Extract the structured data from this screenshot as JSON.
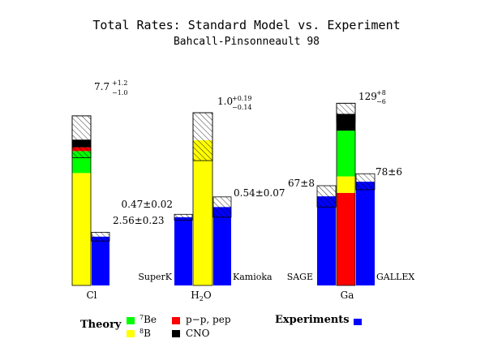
{
  "chart_data": {
    "type": "bar",
    "title": "Total Rates: Standard Model vs. Experiment",
    "subtitle": "Bahcall-Pinsonneault 98",
    "colors": {
      "7Be": "#00ff00",
      "8B": "#ffff00",
      "pp_pep": "#ff0000",
      "CNO": "#000000",
      "experiment": "#0000ff"
    },
    "groups": [
      {
        "name": "Cl",
        "theory": {
          "value": 7.7,
          "err_plus": 1.2,
          "err_minus": 1.0,
          "components": {
            "8B": 5.9,
            "7Be": 1.15,
            "pp_pep": 0.2,
            "CNO": 0.4
          },
          "label_value": "7.7",
          "label_plus": "+1.2",
          "label_minus": "−1.0"
        },
        "experiments": [
          {
            "name": "",
            "value": 2.56,
            "error": 0.23,
            "label": "2.56±0.23"
          }
        ]
      },
      {
        "name": "H2O",
        "label_main": "H",
        "label_sub": "2",
        "label_tail": "O",
        "theory": {
          "value": 1.0,
          "err_plus": 0.19,
          "err_minus": 0.14,
          "components": {
            "8B": 1.0
          },
          "label_value": "1.0",
          "label_plus": "+0.19",
          "label_minus": "−0.14"
        },
        "experiments": [
          {
            "name": "SuperK",
            "value": 0.47,
            "error": 0.02,
            "label": "0.47±0.02"
          },
          {
            "name": "Kamioka",
            "value": 0.54,
            "error": 0.07,
            "label": "0.54±0.07"
          }
        ]
      },
      {
        "name": "Ga",
        "theory": {
          "value": 129,
          "err_plus": 8,
          "err_minus": 6,
          "components": {
            "pp_pep": 69.6,
            "8B": 12.4,
            "7Be": 34.4,
            "CNO": 12.6
          },
          "label_value": "129",
          "label_plus": "+8",
          "label_minus": "−6"
        },
        "experiments": [
          {
            "name": "SAGE",
            "value": 67,
            "error": 8,
            "label": "67±8"
          },
          {
            "name": "GALLEX",
            "value": 78,
            "error": 6,
            "label": "78±6"
          }
        ]
      }
    ],
    "legend": {
      "theory_title": "Theory",
      "experiments_title": "Experiments",
      "items": [
        {
          "key": "7Be",
          "sup": "7",
          "text": "Be"
        },
        {
          "key": "8B",
          "sup": "8",
          "text": "B"
        },
        {
          "key": "pp_pep",
          "sup": "",
          "text": "p−p, pep"
        },
        {
          "key": "CNO",
          "sup": "",
          "text": "CNO"
        }
      ]
    }
  }
}
